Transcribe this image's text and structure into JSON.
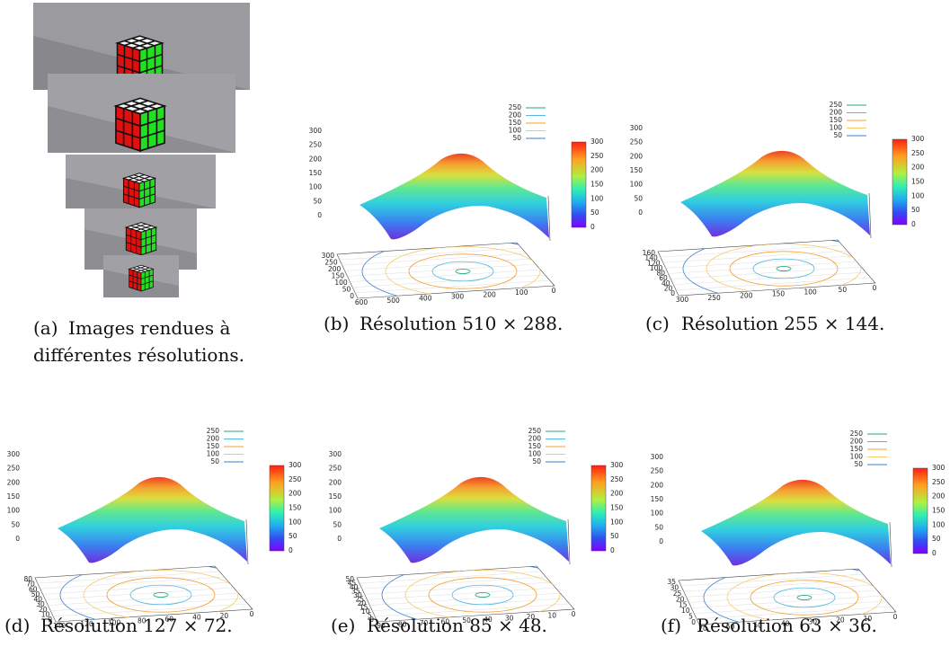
{
  "panels": [
    {
      "label": "(a)",
      "caption_lines": [
        "Images rendues à",
        "différentes résolutions."
      ]
    },
    {
      "label": "(b)",
      "caption": "Résolution 510 × 288.",
      "z_ticks": [
        300,
        250,
        200,
        150,
        100,
        50,
        0
      ],
      "colorbar_ticks": [
        300,
        250,
        200,
        150,
        100,
        50,
        0
      ],
      "legend": [
        {
          "label": 250,
          "color": "#26a67f"
        },
        {
          "label": 200,
          "color": "#55b8e0"
        },
        {
          "label": 150,
          "color": "#f0a030"
        },
        {
          "label": 100,
          "color": "#f5c96a"
        },
        {
          "label": 50,
          "color": "#3a7fd0"
        }
      ],
      "y_ticks": [
        300,
        250,
        200,
        150,
        100,
        50,
        0
      ],
      "x_ticks": [
        600,
        500,
        400,
        300,
        200,
        100,
        0
      ]
    },
    {
      "label": "(c)",
      "caption": "Résolution 255 × 144.",
      "z_ticks": [
        300,
        250,
        200,
        150,
        100,
        50,
        0
      ],
      "colorbar_ticks": [
        300,
        250,
        200,
        150,
        100,
        50,
        0
      ],
      "legend": [
        {
          "label": 250,
          "color": "#26a67f"
        },
        {
          "label": 200,
          "color": "#55b8e0"
        },
        {
          "label": 150,
          "color": "#f0a030"
        },
        {
          "label": 100,
          "color": "#f5c96a"
        },
        {
          "label": 50,
          "color": "#3a7fd0"
        }
      ],
      "y_ticks": [
        160,
        140,
        120,
        100,
        80,
        60,
        40,
        20,
        0
      ],
      "x_ticks": [
        300,
        250,
        200,
        150,
        100,
        50,
        0
      ]
    },
    {
      "label": "(d)",
      "caption": "Résolution 127 × 72.",
      "z_ticks": [
        300,
        250,
        200,
        150,
        100,
        50,
        0
      ],
      "colorbar_ticks": [
        300,
        250,
        200,
        150,
        100,
        50,
        0
      ],
      "legend": [
        {
          "label": 250,
          "color": "#26a67f"
        },
        {
          "label": 200,
          "color": "#55b8e0"
        },
        {
          "label": 150,
          "color": "#f0a030"
        },
        {
          "label": 100,
          "color": "#f5c96a"
        },
        {
          "label": 50,
          "color": "#3a7fd0"
        }
      ],
      "y_ticks": [
        80,
        70,
        60,
        50,
        40,
        30,
        20,
        10,
        0
      ],
      "x_ticks": [
        140,
        120,
        100,
        80,
        60,
        40,
        20,
        0
      ]
    },
    {
      "label": "(e)",
      "caption": "Résolution 85 × 48.",
      "z_ticks": [
        300,
        250,
        200,
        150,
        100,
        50,
        0
      ],
      "colorbar_ticks": [
        300,
        250,
        200,
        150,
        100,
        50,
        0
      ],
      "legend": [
        {
          "label": 250,
          "color": "#26a67f"
        },
        {
          "label": 200,
          "color": "#55b8e0"
        },
        {
          "label": 150,
          "color": "#f0a030"
        },
        {
          "label": 100,
          "color": "#f5c96a"
        },
        {
          "label": 50,
          "color": "#3a7fd0"
        }
      ],
      "y_ticks": [
        50,
        45,
        40,
        35,
        30,
        25,
        20,
        15,
        10,
        5,
        0
      ],
      "x_ticks": [
        90,
        80,
        70,
        60,
        50,
        40,
        30,
        20,
        10,
        0
      ]
    },
    {
      "label": "(f)",
      "caption": "Résolution 63 × 36.",
      "z_ticks": [
        300,
        250,
        200,
        150,
        100,
        50,
        0
      ],
      "colorbar_ticks": [
        300,
        250,
        200,
        150,
        100,
        50,
        0
      ],
      "legend": [
        {
          "label": 250,
          "color": "#26a67f"
        },
        {
          "label": 200,
          "color": "#55b8e0"
        },
        {
          "label": 150,
          "color": "#f0a030"
        },
        {
          "label": 100,
          "color": "#f5c96a"
        },
        {
          "label": 50,
          "color": "#3a7fd0"
        }
      ],
      "y_ticks": [
        35,
        30,
        25,
        20,
        15,
        10,
        5,
        0
      ],
      "x_ticks": [
        70,
        60,
        50,
        40,
        30,
        20,
        10,
        0
      ]
    }
  ]
}
